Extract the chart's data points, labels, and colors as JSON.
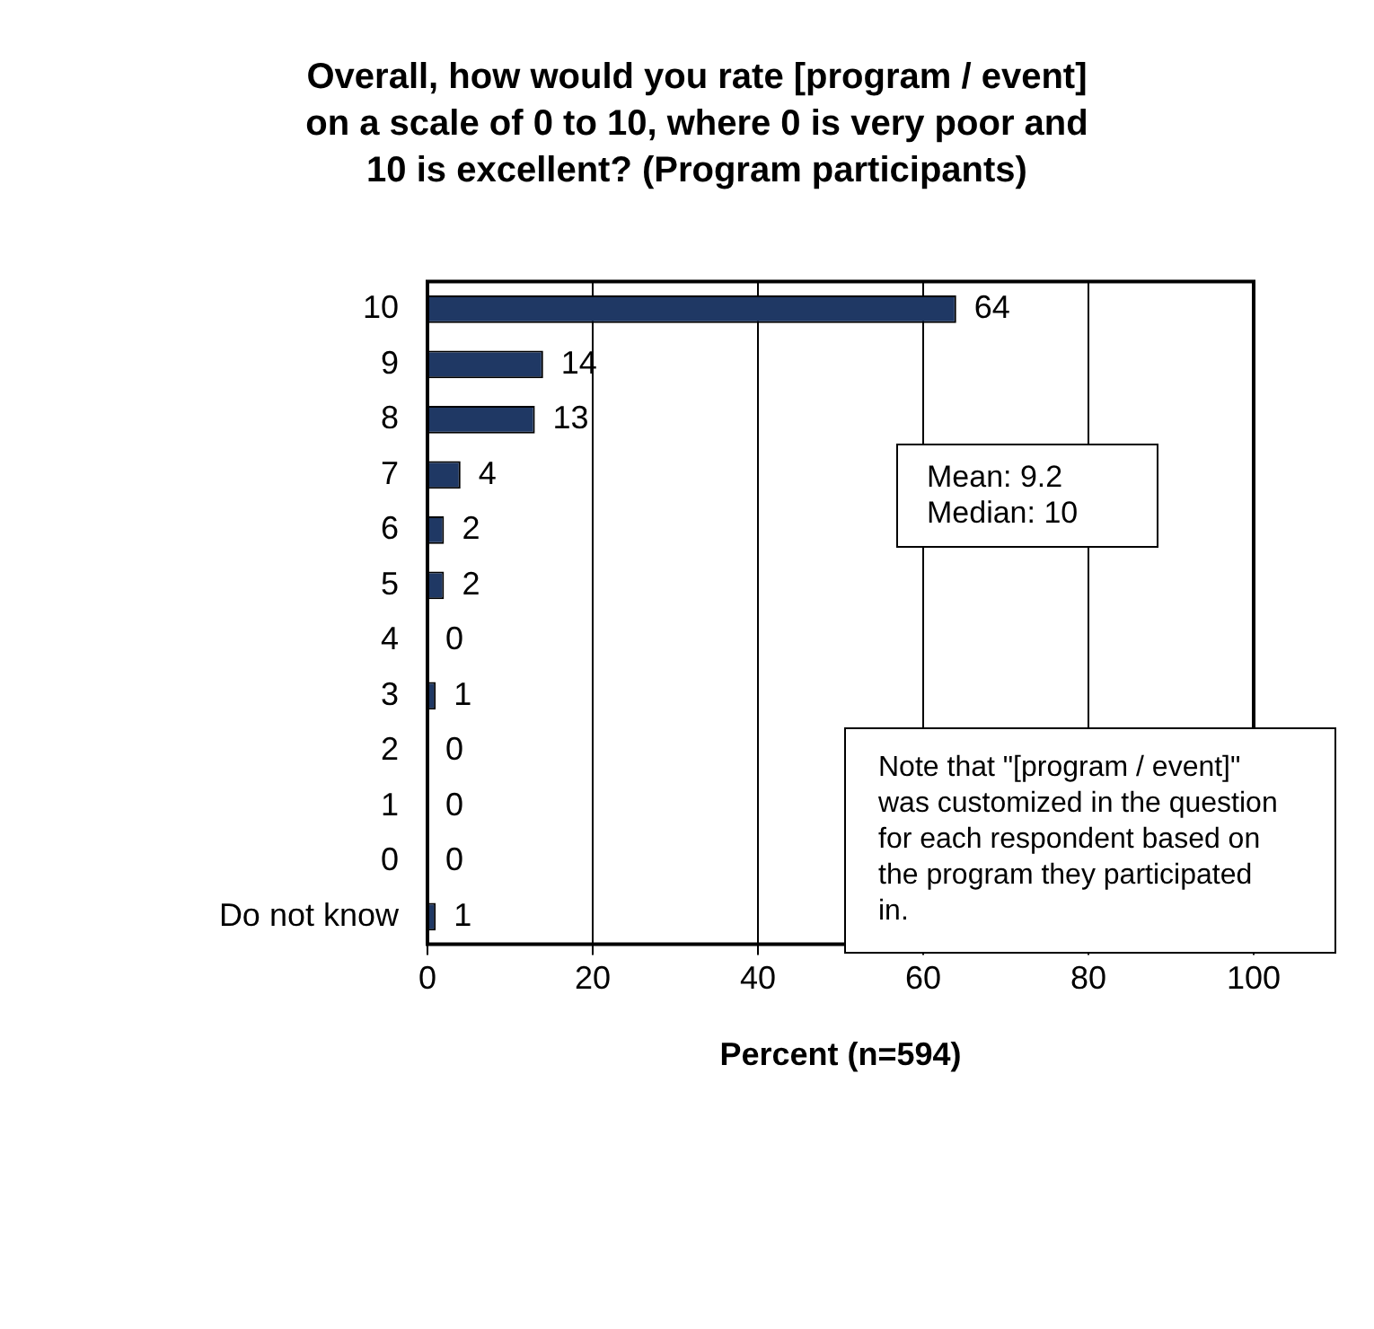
{
  "chart_data": {
    "type": "bar",
    "orientation": "horizontal",
    "title": "Overall, how would you rate [program / event] on a scale of 0 to 10, where 0 is very poor and 10 is excellent? (Program participants)",
    "xlabel": "Percent (n=594)",
    "categories": [
      "10",
      "9",
      "8",
      "7",
      "6",
      "5",
      "4",
      "3",
      "2",
      "1",
      "0",
      "Do not know"
    ],
    "values": [
      64,
      14,
      13,
      4,
      2,
      2,
      0,
      1,
      0,
      0,
      0,
      1
    ],
    "color": "#1f3864",
    "data_labels": true,
    "xlim": [
      0,
      100
    ],
    "xticks": [
      0,
      20,
      40,
      60,
      80,
      100
    ],
    "grid": "x",
    "legend": false,
    "annotations": [
      "Mean: 9.2\nMedian: 10",
      "Note that \"[program / event]\" was customized in the question for each respondent based on the program they participated in."
    ]
  }
}
